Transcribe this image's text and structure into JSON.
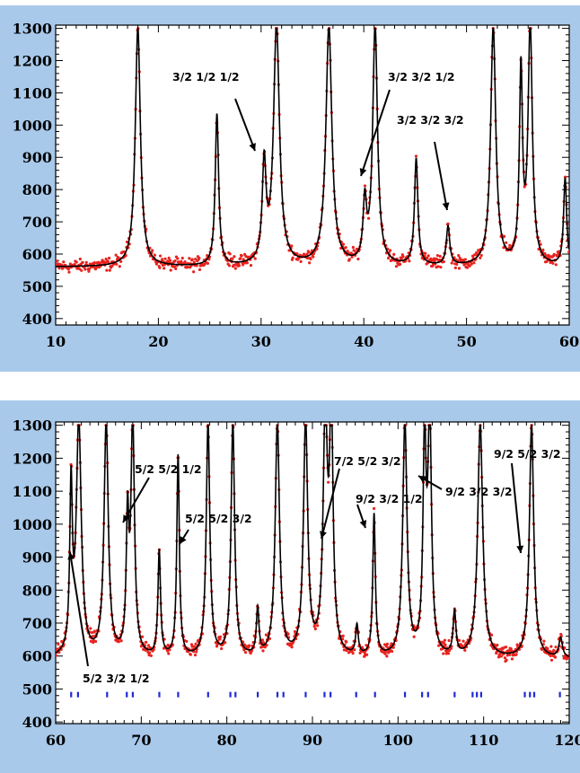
{
  "chart_data": [
    {
      "type": "line",
      "title": "",
      "xlabel": "",
      "ylabel": "",
      "xlim": [
        10,
        60
      ],
      "ylim": [
        380,
        1310
      ],
      "xticks": [
        10,
        20,
        30,
        40,
        50,
        60
      ],
      "yticks": [
        400,
        500,
        600,
        700,
        800,
        900,
        1000,
        1100,
        1200,
        1300
      ],
      "clip_max": 1300,
      "baseline": 560,
      "peaks": [
        {
          "x": 18.0,
          "h": 1300,
          "w": 0.3
        },
        {
          "x": 25.7,
          "h": 1030,
          "w": 0.2
        },
        {
          "x": 30.3,
          "h": 860,
          "w": 0.22
        },
        {
          "x": 31.5,
          "h": 1300,
          "w": 0.35
        },
        {
          "x": 36.6,
          "h": 1300,
          "w": 0.35
        },
        {
          "x": 40.1,
          "h": 740,
          "w": 0.2
        },
        {
          "x": 41.1,
          "h": 1300,
          "w": 0.28
        },
        {
          "x": 45.1,
          "h": 890,
          "w": 0.2
        },
        {
          "x": 48.2,
          "h": 680,
          "w": 0.2
        },
        {
          "x": 52.6,
          "h": 1300,
          "w": 0.3
        },
        {
          "x": 55.3,
          "h": 1150,
          "w": 0.18
        },
        {
          "x": 56.2,
          "h": 1300,
          "w": 0.25
        },
        {
          "x": 59.6,
          "h": 830,
          "w": 0.18
        }
      ],
      "series": [
        {
          "name": "",
          "role": "observed",
          "color": "#e8231f",
          "style": "points"
        },
        {
          "name": "",
          "role": "calculated",
          "color": "#000000",
          "style": "line"
        }
      ],
      "annotations": [
        {
          "text": "3/2 1/2 1/2",
          "x": 30.3,
          "y": 860
        },
        {
          "text": "3/2 3/2 1/2",
          "x": 40.1,
          "y": 740
        },
        {
          "text": "3/2 3/2 3/2",
          "x": 48.2,
          "y": 680
        }
      ]
    },
    {
      "type": "line",
      "title": "",
      "xlabel": "",
      "ylabel": "",
      "xlim": [
        60,
        120
      ],
      "ylim": [
        395,
        1310
      ],
      "xticks": [
        60,
        70,
        80,
        90,
        100,
        110,
        120
      ],
      "yticks": [
        400,
        500,
        600,
        700,
        800,
        900,
        1000,
        1100,
        1200,
        1300
      ],
      "clip_max": 1300,
      "baseline": 590,
      "peaks": [
        {
          "x": 61.8,
          "h": 1080,
          "w": 0.18
        },
        {
          "x": 62.7,
          "h": 1300,
          "w": 0.35
        },
        {
          "x": 65.9,
          "h": 1300,
          "w": 0.3
        },
        {
          "x": 68.4,
          "h": 980,
          "w": 0.18
        },
        {
          "x": 69.0,
          "h": 1300,
          "w": 0.25
        },
        {
          "x": 72.1,
          "h": 910,
          "w": 0.18
        },
        {
          "x": 74.3,
          "h": 1200,
          "w": 0.18
        },
        {
          "x": 77.8,
          "h": 1300,
          "w": 0.25
        },
        {
          "x": 80.7,
          "h": 1300,
          "w": 0.25
        },
        {
          "x": 83.6,
          "h": 730,
          "w": 0.18
        },
        {
          "x": 85.9,
          "h": 1300,
          "w": 0.3
        },
        {
          "x": 89.2,
          "h": 1300,
          "w": 0.3
        },
        {
          "x": 91.5,
          "h": 1300,
          "w": 0.3
        },
        {
          "x": 92.2,
          "h": 1300,
          "w": 0.25
        },
        {
          "x": 95.2,
          "h": 680,
          "w": 0.18
        },
        {
          "x": 97.2,
          "h": 1020,
          "w": 0.18
        },
        {
          "x": 100.8,
          "h": 1300,
          "w": 0.3
        },
        {
          "x": 103.1,
          "h": 1220,
          "w": 0.22
        },
        {
          "x": 103.7,
          "h": 1300,
          "w": 0.25
        },
        {
          "x": 106.6,
          "h": 720,
          "w": 0.2
        },
        {
          "x": 109.6,
          "h": 1300,
          "w": 0.35
        },
        {
          "x": 115.6,
          "h": 1300,
          "w": 0.3
        },
        {
          "x": 119.0,
          "h": 650,
          "w": 0.25
        }
      ],
      "reflection_ticks": [
        61.8,
        62.6,
        66.0,
        68.3,
        69.0,
        72.1,
        74.3,
        77.8,
        80.4,
        81.0,
        83.6,
        85.9,
        86.6,
        89.2,
        91.4,
        92.1,
        95.1,
        97.3,
        100.8,
        102.8,
        103.5,
        106.6,
        108.7,
        109.2,
        109.7,
        114.8,
        115.4,
        115.9,
        118.9
      ],
      "series": [
        {
          "name": "",
          "role": "observed",
          "color": "#e8231f",
          "style": "points"
        },
        {
          "name": "",
          "role": "calculated",
          "color": "#000000",
          "style": "line"
        },
        {
          "name": "",
          "role": "reflections",
          "color": "#1f2bd6",
          "style": "ticks"
        }
      ],
      "annotations": [
        {
          "text": "5/2 5/2 1/2",
          "x": 68.4,
          "y": 980
        },
        {
          "text": "5/2 5/2 3/2",
          "x": 74.3,
          "y": 950
        },
        {
          "text": "5/2 3/2 1/2",
          "x": 61.8,
          "y": 900
        },
        {
          "text": "7/2 5/2 3/2",
          "x": 91.5,
          "y": 950
        },
        {
          "text": "9/2 3/2 1/2",
          "x": 97.2,
          "y": 1020
        },
        {
          "text": "9/2 3/2 3/2",
          "x": 103.1,
          "y": 1150
        },
        {
          "text": "9/2 5/2 3/2",
          "x": 114.8,
          "y": 850
        }
      ]
    }
  ]
}
